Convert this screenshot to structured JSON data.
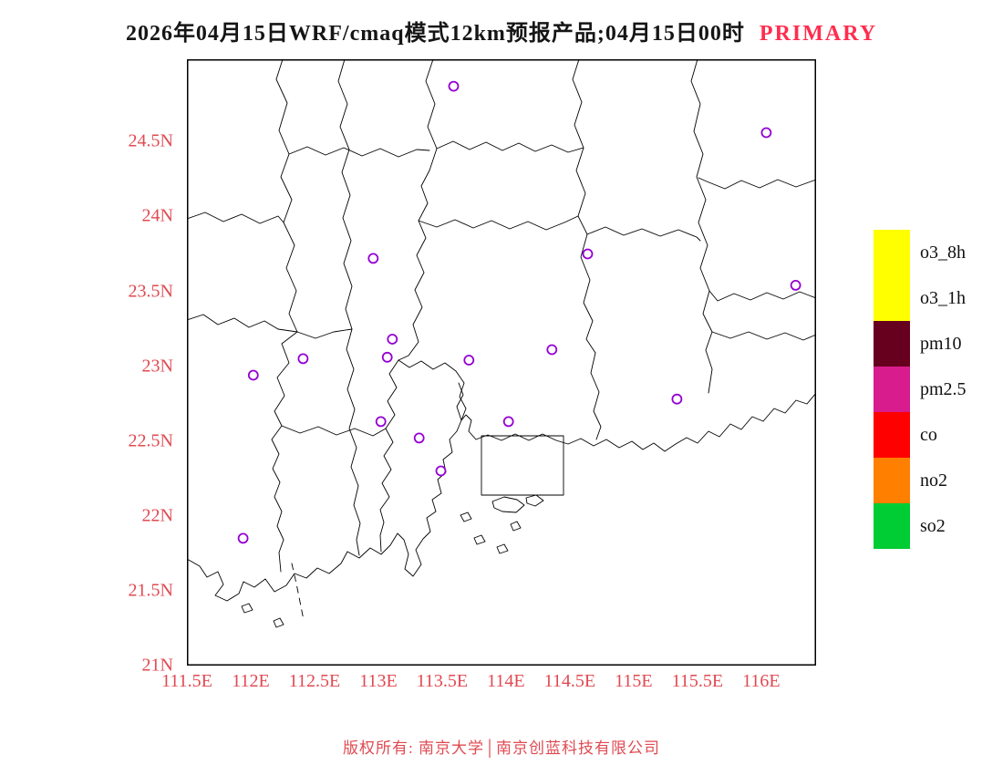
{
  "title": {
    "main": "2026年04月15日WRF/cmaq模式12km预报产品;04月15日00时",
    "highlight": "PRIMARY"
  },
  "axes": {
    "lat_ticks": [
      {
        "label": "24.5N",
        "deg": 24.5
      },
      {
        "label": "24N",
        "deg": 24.0
      },
      {
        "label": "23.5N",
        "deg": 23.5
      },
      {
        "label": "23N",
        "deg": 23.0
      },
      {
        "label": "22.5N",
        "deg": 22.5
      },
      {
        "label": "22N",
        "deg": 22.0
      },
      {
        "label": "21.5N",
        "deg": 21.5
      },
      {
        "label": "21N",
        "deg": 21.0
      }
    ],
    "lon_ticks": [
      {
        "label": "111.5E",
        "deg": 111.5
      },
      {
        "label": "112E",
        "deg": 112.0
      },
      {
        "label": "112.5E",
        "deg": 112.5
      },
      {
        "label": "113E",
        "deg": 113.0
      },
      {
        "label": "113.5E",
        "deg": 113.5
      },
      {
        "label": "114E",
        "deg": 114.0
      },
      {
        "label": "114.5E",
        "deg": 114.5
      },
      {
        "label": "115E",
        "deg": 115.0
      },
      {
        "label": "115.5E",
        "deg": 115.5
      },
      {
        "label": "116E",
        "deg": 116.0
      }
    ]
  },
  "map": {
    "extent": {
      "lon_min": 111.5,
      "lon_max": 116.43,
      "lat_min": 21.0,
      "lat_max": 25.05
    },
    "stations": [
      [
        113.59,
        24.87
      ],
      [
        116.04,
        24.56
      ],
      [
        112.96,
        23.72
      ],
      [
        114.64,
        23.75
      ],
      [
        116.27,
        23.54
      ],
      [
        113.11,
        23.18
      ],
      [
        113.07,
        23.06
      ],
      [
        112.41,
        23.05
      ],
      [
        112.02,
        22.94
      ],
      [
        113.71,
        23.04
      ],
      [
        114.36,
        23.11
      ],
      [
        115.34,
        22.78
      ],
      [
        113.02,
        22.63
      ],
      [
        114.02,
        22.63
      ],
      [
        113.32,
        22.52
      ],
      [
        113.49,
        22.3
      ],
      [
        111.94,
        21.85
      ]
    ]
  },
  "legend": {
    "items": [
      {
        "label": "o3_8h",
        "color": "#FFFF00"
      },
      {
        "label": "o3_1h",
        "color": "#FFFF00"
      },
      {
        "label": "pm10",
        "color": "#67001F"
      },
      {
        "label": "pm2.5",
        "color": "#D81B8D"
      },
      {
        "label": "co",
        "color": "#FF0000"
      },
      {
        "label": "no2",
        "color": "#FF8000"
      },
      {
        "label": "so2",
        "color": "#00CC33"
      }
    ]
  },
  "footer": {
    "text": "版权所有: 南京大学│南京创蓝科技有限公司"
  },
  "colors": {
    "axis_label": "#E04A52",
    "primary_highlight": "#FF2D4E",
    "marker": "#9400D3",
    "boundary": "#000000"
  }
}
